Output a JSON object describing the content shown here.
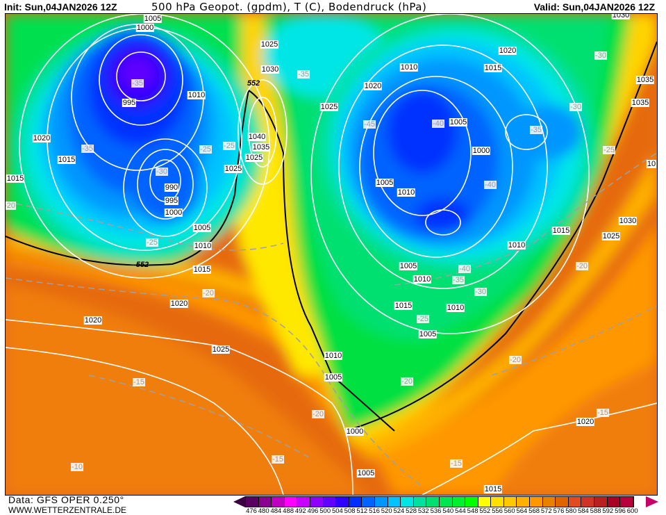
{
  "header": {
    "init": "Init: Sun,04JAN2026 12Z",
    "title": "500 hPa Geopot. (gpdm), T (C), Bodendruck (hPa)",
    "valid": "Valid: Sun,04JAN2026 12Z"
  },
  "footer": {
    "data_source": "Data: GFS OPER 0.250°",
    "website": "WWW.WETTERZENTRALE.DE"
  },
  "colorbar": {
    "labels": [
      "476",
      "480",
      "484",
      "488",
      "492",
      "496",
      "500",
      "504",
      "508",
      "512",
      "516",
      "520",
      "524",
      "528",
      "532",
      "536",
      "540",
      "544",
      "548",
      "552",
      "556",
      "560",
      "564",
      "568",
      "572",
      "576",
      "580",
      "584",
      "588",
      "592",
      "596",
      "600"
    ],
    "colors": [
      "#5a0060",
      "#8a0090",
      "#c000c0",
      "#ff00ff",
      "#c800ff",
      "#9000ff",
      "#6000ff",
      "#3000ff",
      "#0030ff",
      "#0064ff",
      "#0096ff",
      "#00c3ff",
      "#00e6e6",
      "#00e0a0",
      "#00e070",
      "#00e650",
      "#00f030",
      "#00ff00",
      "#ffff00",
      "#ffe000",
      "#ffc800",
      "#ffb000",
      "#ff9800",
      "#e88000",
      "#e06400",
      "#e04c20",
      "#d03424",
      "#b82020",
      "#a80024",
      "#b8003c"
    ],
    "below_color": "#3a0040",
    "above_color": "#c8006a"
  },
  "map": {
    "labels": [
      "1005",
      "1000",
      "-35",
      "995",
      "1020",
      "1015",
      "-35",
      "1015",
      "-20",
      "-30",
      "-25",
      "-25",
      "990",
      "995",
      "1000",
      "1005",
      "-25",
      "1010",
      "552",
      "1015",
      "1020",
      "-20",
      "1020",
      "1025",
      "-15",
      "-10",
      "1025",
      "1030",
      "-35",
      "552",
      "1010",
      "1025",
      "1040",
      "1035",
      "1025",
      "1025",
      "1020",
      "1010",
      "-45",
      "-40",
      "1005",
      "1000",
      "1005",
      "1010",
      "-40",
      "1020",
      "1015",
      "-30",
      "1035",
      "-30",
      "-35",
      "-25",
      "1030",
      "1015",
      "1010",
      "1030",
      "1025",
      "-20",
      "1005",
      "1010",
      "-40",
      "-35",
      "-30",
      "1015",
      "1010",
      "-25",
      "1005",
      "1010",
      "1005",
      "-20",
      "-20",
      "-20",
      "1000",
      "-15",
      "1005",
      "-15",
      "1020",
      "-15",
      "1015",
      "1035",
      "10"
    ]
  }
}
